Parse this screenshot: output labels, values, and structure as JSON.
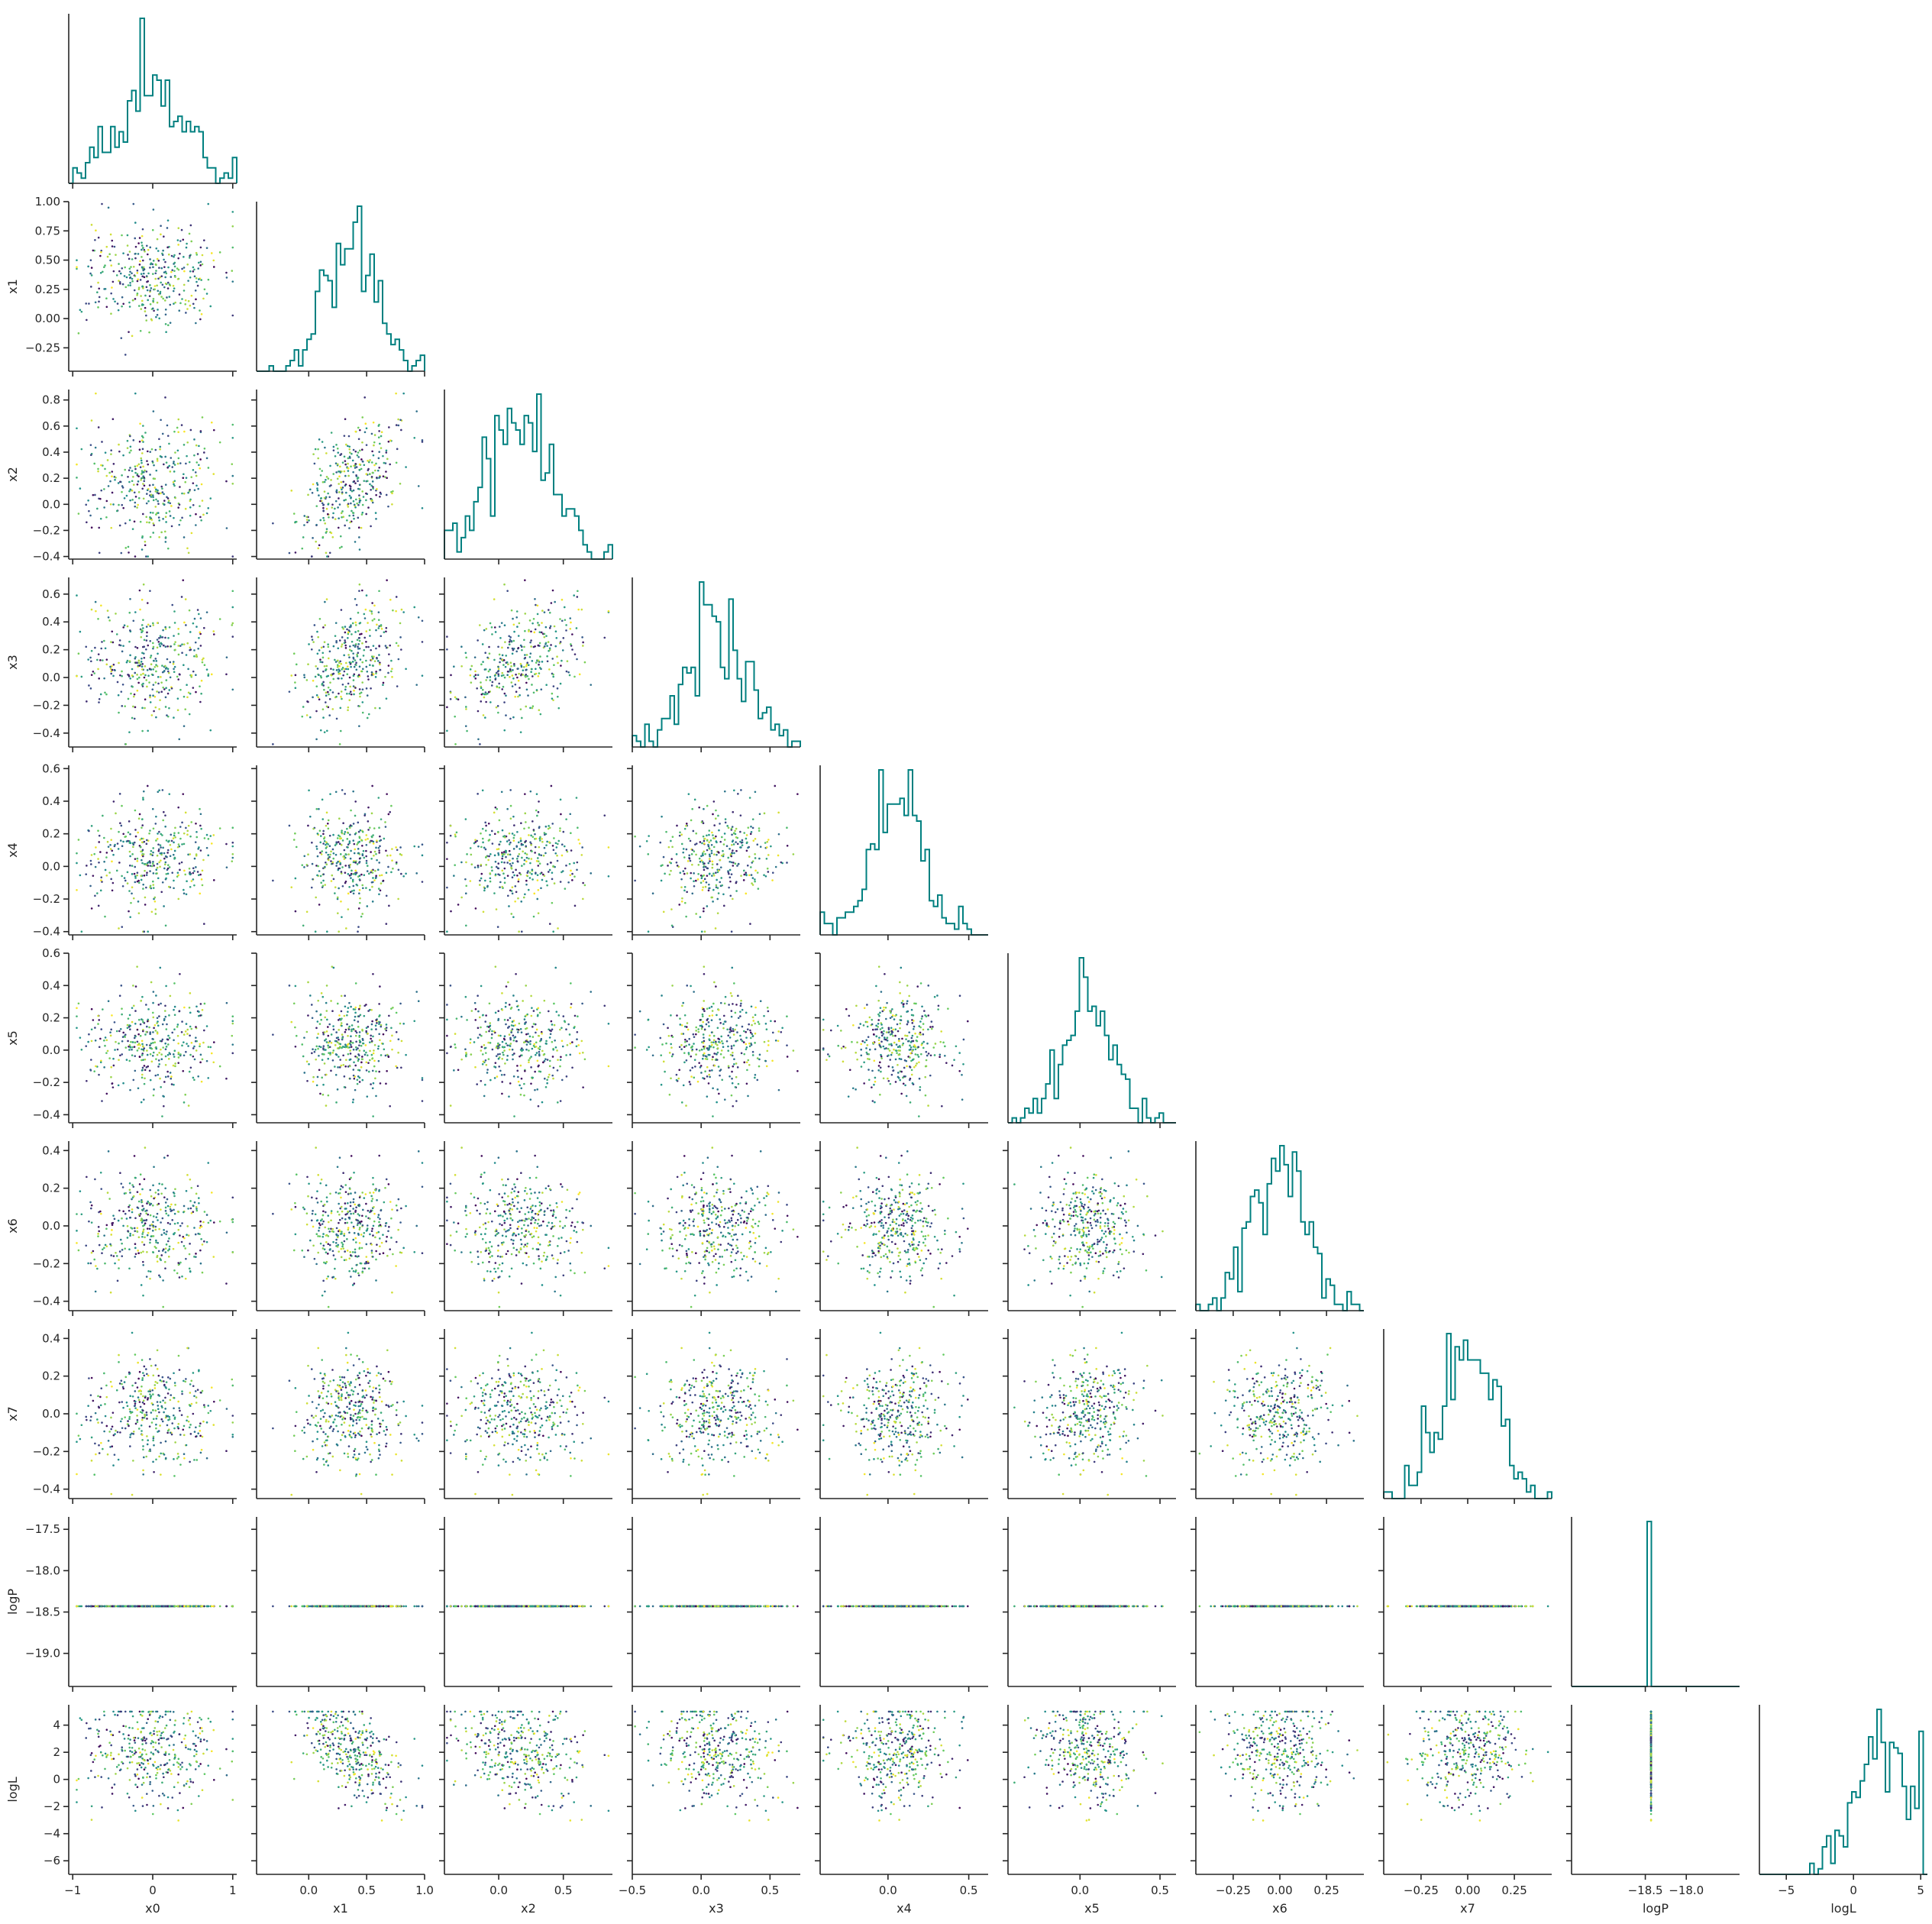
{
  "chart_data": {
    "type": "scatter",
    "layout": "corner-plot",
    "variables": [
      "x0",
      "x1",
      "x2",
      "x3",
      "x4",
      "x5",
      "x6",
      "x7",
      "logP",
      "logL"
    ],
    "colors": {
      "histogram": "#008080",
      "colormap": [
        "#440154",
        "#3b528b",
        "#21918c",
        "#5ec962",
        "#fde725"
      ],
      "colored_by": "random"
    },
    "n_points": 380,
    "ranges": {
      "x0": [
        -1.05,
        1.05
      ],
      "x1": [
        -0.45,
        1.0
      ],
      "x2": [
        -0.42,
        0.88
      ],
      "x3": [
        -0.5,
        0.72
      ],
      "x4": [
        -0.42,
        0.62
      ],
      "x5": [
        -0.45,
        0.6
      ],
      "x6": [
        -0.45,
        0.45
      ],
      "x7": [
        -0.45,
        0.45
      ],
      "logP": [
        -19.4,
        -17.35
      ],
      "logL": [
        -7,
        5.5
      ]
    },
    "ticks": {
      "x0": {
        "values": [
          -1,
          0,
          1
        ],
        "labels": [
          "−1",
          "0",
          "1"
        ]
      },
      "x1": {
        "values": [
          0,
          0.5,
          1
        ],
        "labels": [
          "0.0",
          "0.5",
          "1.0"
        ]
      },
      "x2": {
        "values": [
          0,
          0.5
        ],
        "labels": [
          "0.0",
          "0.5"
        ]
      },
      "x3": {
        "values": [
          -0.5,
          0,
          0.5
        ],
        "labels": [
          "−0.5",
          "0.0",
          "0.5"
        ]
      },
      "x4": {
        "values": [
          0,
          0.5
        ],
        "labels": [
          "0.0",
          "0.5"
        ]
      },
      "x5": {
        "values": [
          0,
          0.5
        ],
        "labels": [
          "0.0",
          "0.5"
        ]
      },
      "x6": {
        "values": [
          -0.25,
          0,
          0.25
        ],
        "labels": [
          "−0.25",
          "0.00",
          "0.25"
        ]
      },
      "x7": {
        "values": [
          -0.25,
          0,
          0.25
        ],
        "labels": [
          "−0.25",
          "0.00",
          "0.25"
        ]
      },
      "logP": {
        "values": [
          -18.5,
          -18.0
        ],
        "labels": [
          "−18.5",
          "−18.0"
        ]
      },
      "logL": {
        "values": [
          -5,
          0,
          5
        ],
        "labels": [
          "−5",
          "0",
          "5"
        ]
      }
    },
    "yticks": {
      "x1": {
        "values": [
          -0.25,
          0,
          0.25,
          0.5,
          0.75,
          1.0
        ],
        "labels": [
          "−0.25",
          "0.00",
          "0.25",
          "0.50",
          "0.75",
          "1.00"
        ]
      },
      "x2": {
        "values": [
          -0.4,
          -0.2,
          0,
          0.2,
          0.4,
          0.6,
          0.8
        ],
        "labels": [
          "−0.4",
          "−0.2",
          "0.0",
          "0.2",
          "0.4",
          "0.6",
          "0.8"
        ]
      },
      "x3": {
        "values": [
          -0.4,
          -0.2,
          0,
          0.2,
          0.4,
          0.6
        ],
        "labels": [
          "−0.4",
          "−0.2",
          "0.0",
          "0.2",
          "0.4",
          "0.6"
        ]
      },
      "x4": {
        "values": [
          -0.4,
          -0.2,
          0,
          0.2,
          0.4,
          0.6
        ],
        "labels": [
          "−0.4",
          "−0.2",
          "0.0",
          "0.2",
          "0.4",
          "0.6"
        ]
      },
      "x5": {
        "values": [
          -0.4,
          -0.2,
          0,
          0.2,
          0.4,
          0.6
        ],
        "labels": [
          "−0.4",
          "−0.2",
          "0.0",
          "0.2",
          "0.4",
          "0.6"
        ]
      },
      "x6": {
        "values": [
          -0.4,
          -0.2,
          0,
          0.2,
          0.4
        ],
        "labels": [
          "−0.4",
          "−0.2",
          "0.0",
          "0.2",
          "0.4"
        ]
      },
      "x7": {
        "values": [
          -0.4,
          -0.2,
          0,
          0.2,
          0.4
        ],
        "labels": [
          "−0.4",
          "−0.2",
          "0.0",
          "0.2",
          "0.4"
        ]
      },
      "logP": {
        "values": [
          -19,
          -18.5,
          -18,
          -17.5
        ],
        "labels": [
          "−19.0",
          "−18.5",
          "−18.0",
          "−17.5"
        ]
      },
      "logL": {
        "values": [
          -6,
          -4,
          -2,
          0,
          2,
          4
        ],
        "labels": [
          "−6",
          "−4",
          "−2",
          "0",
          "2",
          "4"
        ]
      }
    },
    "distributions": {
      "x0": {
        "mean": 0.0,
        "sd": 0.42,
        "min": -0.95,
        "max": 1.0
      },
      "x1": {
        "mean": 0.38,
        "sd": 0.22,
        "min": -0.4,
        "max": 0.98,
        "dep": {
          "x0_abs": 0.15
        }
      },
      "x2": {
        "mean": 0.18,
        "sd": 0.22,
        "min": -0.4,
        "max": 0.85,
        "dep": {
          "x1": 0.55
        }
      },
      "x3": {
        "mean": 0.12,
        "sd": 0.18,
        "min": -0.48,
        "max": 0.7,
        "dep": {
          "x1": 0.2,
          "x2": 0.25
        }
      },
      "x4": {
        "mean": 0.05,
        "sd": 0.16,
        "min": -0.4,
        "max": 0.6,
        "dep": {
          "x3": 0.15
        }
      },
      "x5": {
        "mean": 0.05,
        "sd": 0.16,
        "min": -0.44,
        "max": 0.56
      },
      "x6": {
        "mean": 0.0,
        "sd": 0.15,
        "min": -0.43,
        "max": 0.43
      },
      "x7": {
        "mean": 0.0,
        "sd": 0.15,
        "min": -0.43,
        "max": 0.43
      },
      "logP": {
        "constant": -18.43
      },
      "logL": {
        "mean": 2.0,
        "sd": 1.6,
        "min": -6.5,
        "max": 5.0,
        "dep": {
          "x1": -5.0
        }
      }
    },
    "grid": false,
    "legend": "none"
  }
}
